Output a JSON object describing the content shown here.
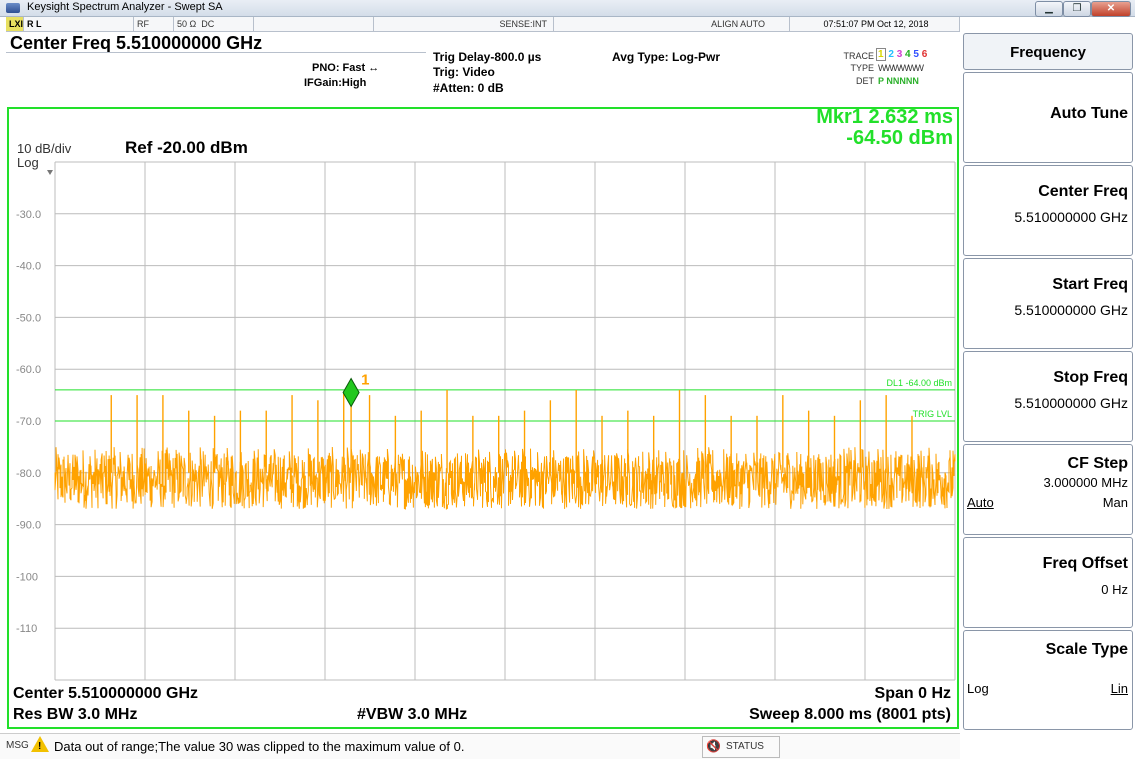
{
  "window": {
    "title": "Keysight Spectrum Analyzer - Swept SA"
  },
  "status_bar": {
    "mode_icon": "lxi-icon",
    "rl": "R L",
    "rf": "RF",
    "impedance": "50 Ω",
    "coupling": "DC",
    "sense": "SENSE:INT",
    "align": "ALIGN AUTO",
    "datetime": "07:51:07 PM Oct 12, 2018"
  },
  "header": {
    "center_freq": "Center Freq 5.510000000 GHz",
    "pno": "PNO: Fast",
    "ifgain": "IFGain:High",
    "trig_delay": "Trig Delay-800.0 µs",
    "trig": "Trig: Video",
    "atten": "#Atten: 0 dB",
    "avg_type": "Avg Type: Log-Pwr",
    "trace_label": "TRACE",
    "trace_nums": [
      "1",
      "2",
      "3",
      "4",
      "5",
      "6"
    ],
    "type_label": "TYPE",
    "type_val": "WWWWWW",
    "det_label": "DET",
    "det_val": "P NNNNN"
  },
  "marker": {
    "line1": "Mkr1 2.632 ms",
    "line2": "-64.50 dBm",
    "label": "1"
  },
  "display": {
    "scale": "10 dB/div",
    "log": "Log",
    "ref": "Ref -20.00 dBm",
    "y_ticks": [
      "-30.0",
      "-40.0",
      "-50.0",
      "-60.0",
      "-70.0",
      "-80.0",
      "-90.0",
      "-100",
      "-110"
    ],
    "dl1_label": "DL1 -64.00 dBm",
    "trig_label": "TRIG LVL"
  },
  "footer": {
    "center": "Center 5.510000000 GHz",
    "span": "Span 0 Hz",
    "rbw": "Res BW 3.0 MHz",
    "vbw": "#VBW 3.0 MHz",
    "sweep": "Sweep  8.000 ms (8001 pts)"
  },
  "message": {
    "prefix": "MSG",
    "text": "Data out of range;The value 30 was clipped to the maximum value of 0.",
    "status": "STATUS"
  },
  "softkeys": {
    "menu_title": "Frequency",
    "auto_tune": "Auto Tune",
    "center_freq": {
      "label": "Center Freq",
      "value": "5.510000000 GHz"
    },
    "start_freq": {
      "label": "Start Freq",
      "value": "5.510000000 GHz"
    },
    "stop_freq": {
      "label": "Stop Freq",
      "value": "5.510000000 GHz"
    },
    "cf_step": {
      "label": "CF Step",
      "value": "3.000000 MHz",
      "auto": "Auto",
      "man": "Man"
    },
    "freq_offset": {
      "label": "Freq Offset",
      "value": "0 Hz"
    },
    "scale_type": {
      "label": "Scale Type",
      "log": "Log",
      "lin": "Lin"
    }
  },
  "colors": {
    "trace": "#ffa200",
    "graticule": "#22e02a",
    "grid": "#bcbcbc"
  },
  "chart_data": {
    "type": "line",
    "title": "",
    "xlabel": "",
    "ylabel": "",
    "ylim": [
      -120,
      -20
    ],
    "xlim_ms": [
      0,
      8.0
    ],
    "noise_floor_dbm": -81,
    "noise_range_dbm": [
      -87,
      -75
    ],
    "display_line_dbm": -64.0,
    "trigger_level_dbm": -70.0,
    "marker": {
      "x_ms": 2.632,
      "y_dbm": -64.5
    },
    "spikes_dbm": [
      -65,
      -65,
      -65,
      -68,
      -69,
      -68,
      -68,
      -65,
      -66,
      -64.5,
      -65,
      -69,
      -68,
      -64,
      -69,
      -69,
      -68,
      -66,
      -64,
      -69,
      -68,
      -69,
      -64,
      -65,
      -69,
      -69,
      -65,
      -68,
      -69,
      -66,
      -65,
      -69
    ]
  }
}
